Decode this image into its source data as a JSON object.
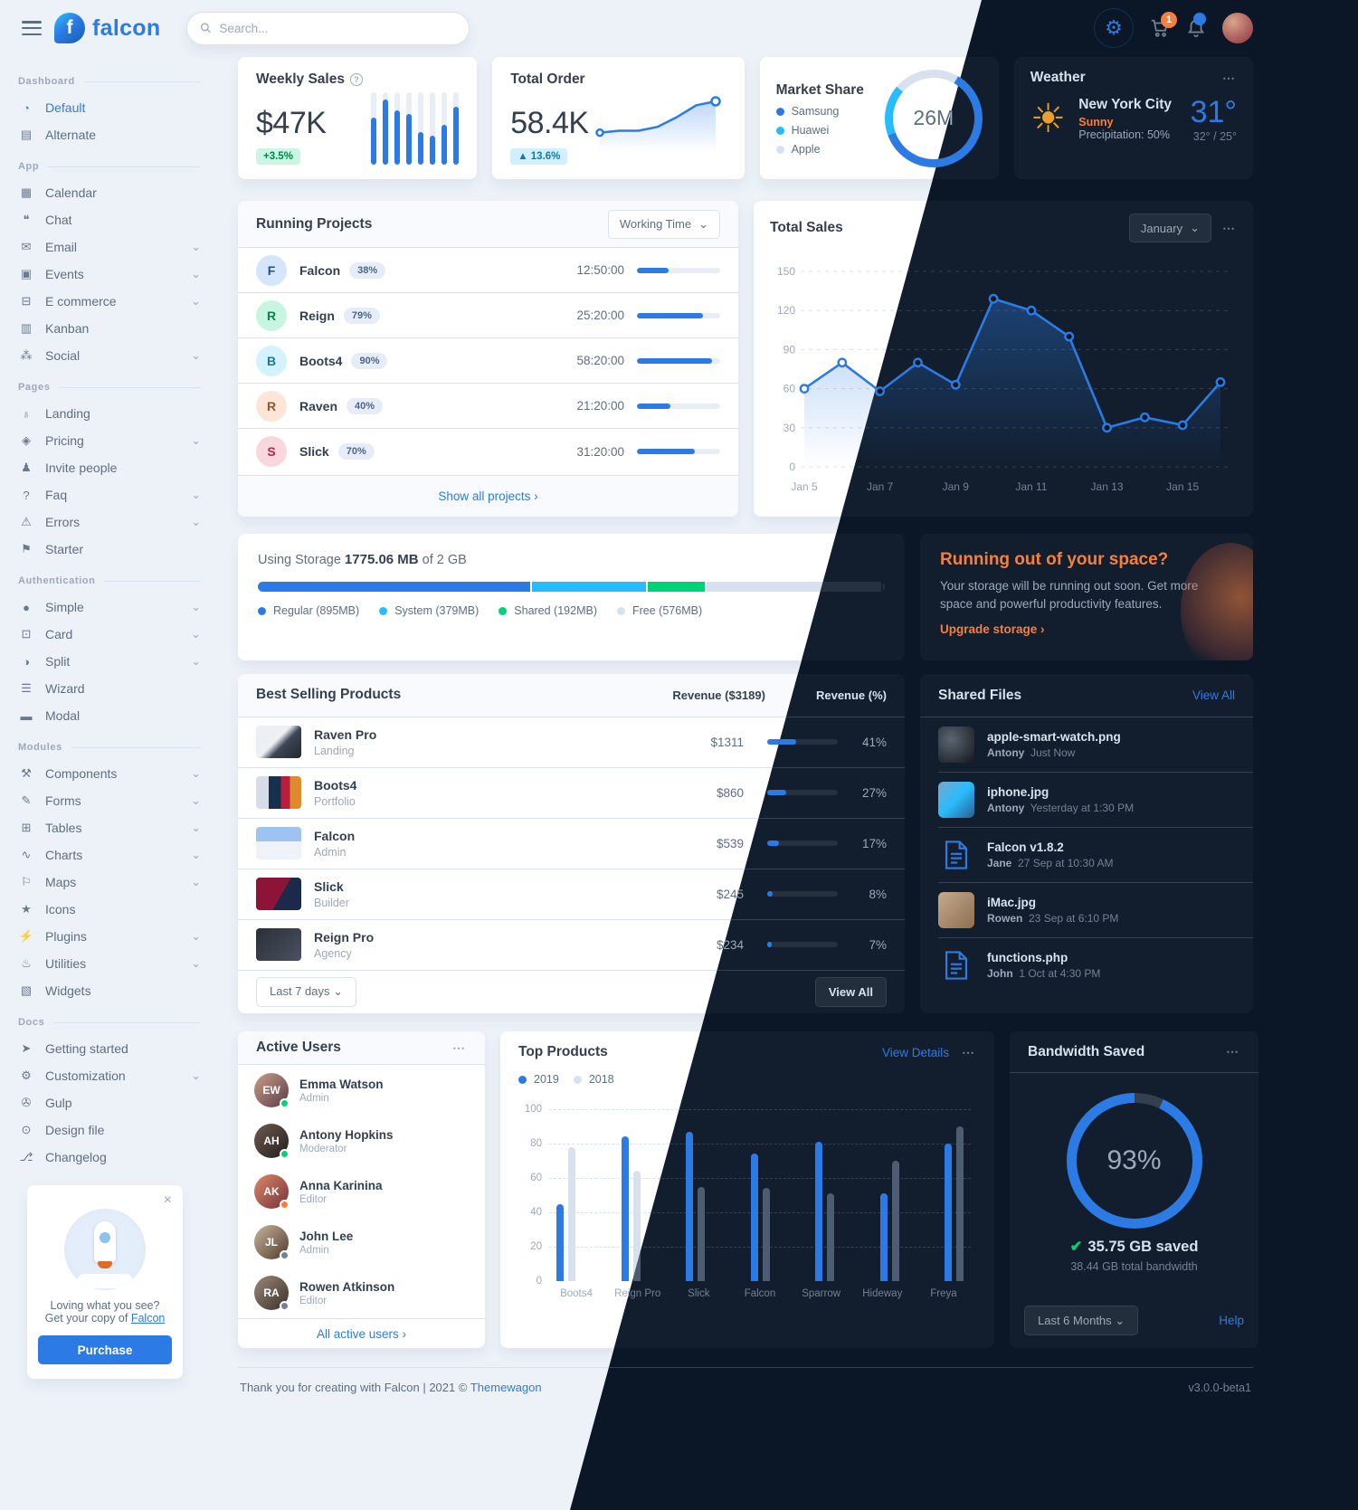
{
  "app": {
    "logo_text": "falcon",
    "search_placeholder": "Search...",
    "cart_badge": "1",
    "footer": {
      "thanks": "Thank you for creating with Falcon |",
      "year": "2021 ©",
      "brand": "Themewagon",
      "version": "v3.0.0-beta1"
    }
  },
  "sidebar": {
    "groups": [
      {
        "label": "Dashboard",
        "items": [
          {
            "label": "Default",
            "icon": "◔",
            "icon_name": "pie-chart-icon",
            "active": true
          },
          {
            "label": "Alternate",
            "icon": "▤",
            "icon_name": "bar-chart-icon"
          }
        ]
      },
      {
        "label": "App",
        "items": [
          {
            "label": "Calendar",
            "icon": "▦",
            "icon_name": "calendar-icon"
          },
          {
            "label": "Chat",
            "icon": "❝",
            "icon_name": "chat-icon"
          },
          {
            "label": "Email",
            "icon": "✉",
            "icon_name": "email-icon",
            "caret": true
          },
          {
            "label": "Events",
            "icon": "▣",
            "icon_name": "events-icon",
            "caret": true
          },
          {
            "label": "E commerce",
            "icon": "⊟",
            "icon_name": "cart-icon",
            "caret": true
          },
          {
            "label": "Kanban",
            "icon": "▥",
            "icon_name": "kanban-icon"
          },
          {
            "label": "Social",
            "icon": "⁂",
            "icon_name": "share-icon",
            "caret": true
          }
        ]
      },
      {
        "label": "Pages",
        "items": [
          {
            "label": "Landing",
            "icon": "♁",
            "icon_name": "globe-icon"
          },
          {
            "label": "Pricing",
            "icon": "◈",
            "icon_name": "tags-icon",
            "caret": true
          },
          {
            "label": "Invite people",
            "icon": "♟",
            "icon_name": "user-plus-icon"
          },
          {
            "label": "Faq",
            "icon": "?",
            "icon_name": "question-icon",
            "caret": true
          },
          {
            "label": "Errors",
            "icon": "⚠",
            "icon_name": "warning-icon",
            "caret": true
          },
          {
            "label": "Starter",
            "icon": "⚑",
            "icon_name": "flag-icon"
          }
        ]
      },
      {
        "label": "Authentication",
        "items": [
          {
            "label": "Simple",
            "icon": "●",
            "icon_name": "circle-icon",
            "caret": true
          },
          {
            "label": "Card",
            "icon": "⊡",
            "icon_name": "card-icon",
            "caret": true
          },
          {
            "label": "Split",
            "icon": "◑",
            "icon_name": "half-circle-icon",
            "caret": true
          },
          {
            "label": "Wizard",
            "icon": "☰",
            "icon_name": "layers-icon"
          },
          {
            "label": "Modal",
            "icon": "▬",
            "icon_name": "window-icon"
          }
        ]
      },
      {
        "label": "Modules",
        "items": [
          {
            "label": "Components",
            "icon": "⚒",
            "icon_name": "puzzle-icon",
            "caret": true
          },
          {
            "label": "Forms",
            "icon": "✎",
            "icon_name": "form-icon",
            "caret": true
          },
          {
            "label": "Tables",
            "icon": "⊞",
            "icon_name": "table-icon",
            "caret": true
          },
          {
            "label": "Charts",
            "icon": "∿",
            "icon_name": "line-chart-icon",
            "caret": true
          },
          {
            "label": "Maps",
            "icon": "⚐",
            "icon_name": "map-icon",
            "caret": true
          },
          {
            "label": "Icons",
            "icon": "★",
            "icon_name": "star-icon"
          },
          {
            "label": "Plugins",
            "icon": "⚡",
            "icon_name": "plug-icon",
            "caret": true
          },
          {
            "label": "Utilities",
            "icon": "♨",
            "icon_name": "fire-icon",
            "caret": true
          },
          {
            "label": "Widgets",
            "icon": "▧",
            "icon_name": "widgets-icon"
          }
        ]
      },
      {
        "label": "Docs",
        "items": [
          {
            "label": "Getting started",
            "icon": "➤",
            "icon_name": "rocket-icon"
          },
          {
            "label": "Customization",
            "icon": "⚙",
            "icon_name": "wrench-icon",
            "caret": true
          },
          {
            "label": "Gulp",
            "icon": "✇",
            "icon_name": "gulp-icon"
          },
          {
            "label": "Design file",
            "icon": "⊙",
            "icon_name": "palette-icon"
          },
          {
            "label": "Changelog",
            "icon": "⎇",
            "icon_name": "code-branch-icon"
          }
        ]
      }
    ],
    "promo": {
      "line1": "Loving what you see?",
      "line2": "Get your copy of",
      "brand": "Falcon",
      "button": "Purchase",
      "close": "×"
    }
  },
  "weekly_sales": {
    "title": "Weekly Sales",
    "value": "$47K",
    "badge": "+3.5%"
  },
  "total_order": {
    "title": "Total Order",
    "value": "58.4K",
    "badge": "▲ 13.6%"
  },
  "market_share": {
    "title": "Market Share",
    "center": "26M",
    "legend": [
      {
        "label": "Samsung",
        "color": "#2c7be5"
      },
      {
        "label": "Huawei",
        "color": "#27bcfd"
      },
      {
        "label": "Apple",
        "color": "#d8e2ef"
      }
    ]
  },
  "weather": {
    "title": "Weather",
    "city": "New York City",
    "condition": "Sunny",
    "precipitation": "Precipitation: 50%",
    "temp": "31°",
    "range": "32° / 25°"
  },
  "running_projects": {
    "title": "Running Projects",
    "filter": "Working Time",
    "show_all": "Show all projects ›",
    "rows": [
      {
        "initial": "F",
        "name": "Falcon",
        "pct": 38,
        "time": "12:50:00",
        "color": "blue"
      },
      {
        "initial": "R",
        "name": "Reign",
        "pct": 79,
        "time": "25:20:00",
        "color": "green"
      },
      {
        "initial": "B",
        "name": "Boots4",
        "pct": 90,
        "time": "58:20:00",
        "color": "cyan"
      },
      {
        "initial": "R",
        "name": "Raven",
        "pct": 40,
        "time": "21:20:00",
        "color": "orange"
      },
      {
        "initial": "S",
        "name": "Slick",
        "pct": 70,
        "time": "31:20:00",
        "color": "red"
      }
    ]
  },
  "total_sales": {
    "title": "Total Sales",
    "month": "January"
  },
  "storage": {
    "prefix": "Using Storage",
    "used": "1775.06 MB",
    "of_text": "of 2 GB",
    "total_mb": 2048,
    "segments": [
      {
        "label": "Regular (895MB)",
        "mb": 895,
        "color": "#2c7be5"
      },
      {
        "label": "System (379MB)",
        "mb": 379,
        "color": "#27bcfd"
      },
      {
        "label": "Shared (192MB)",
        "mb": 192,
        "color": "#00d27a"
      },
      {
        "label": "Free (576MB)",
        "mb": 576,
        "color": "#d8e2ef"
      }
    ]
  },
  "upgrade": {
    "title": "Running out of your space?",
    "body": "Your storage will be running out soon. Get more space and powerful productivity features.",
    "cta": "Upgrade storage ›"
  },
  "best_selling": {
    "title": "Best Selling Products",
    "col_revenue": "Revenue ($3189)",
    "col_pct": "Revenue (%)",
    "period": "Last 7 days ⌄",
    "view_all": "View All",
    "rows": [
      {
        "name": "Raven Pro",
        "category": "Landing",
        "revenue": "$1311",
        "pct": 41
      },
      {
        "name": "Boots4",
        "category": "Portfolio",
        "revenue": "$860",
        "pct": 27
      },
      {
        "name": "Falcon",
        "category": "Admin",
        "revenue": "$539",
        "pct": 17
      },
      {
        "name": "Slick",
        "category": "Builder",
        "revenue": "$245",
        "pct": 8
      },
      {
        "name": "Reign Pro",
        "category": "Agency",
        "revenue": "$234",
        "pct": 7
      }
    ]
  },
  "shared_files": {
    "title": "Shared Files",
    "view_all": "View All",
    "files": [
      {
        "name": "apple-smart-watch.png",
        "who": "Antony",
        "when": "Just Now",
        "thumb": "gw"
      },
      {
        "name": "iphone.jpg",
        "who": "Antony",
        "when": "Yesterday at 1:30 PM",
        "thumb": "gi"
      },
      {
        "name": "Falcon v1.8.2",
        "who": "Jane",
        "when": "27 Sep at 10:30 AM",
        "thumb": "zip"
      },
      {
        "name": "iMac.jpg",
        "who": "Rowen",
        "when": "23 Sep at 6:10 PM",
        "thumb": "gm"
      },
      {
        "name": "functions.php",
        "who": "John",
        "when": "1 Oct at 4:30 PM",
        "thumb": "doc"
      }
    ]
  },
  "active_users": {
    "title": "Active Users",
    "link": "All active users ›",
    "users": [
      {
        "name": "Emma Watson",
        "role": "Admin",
        "status": "#00d27a",
        "initials": "EW",
        "av": "ua1"
      },
      {
        "name": "Antony Hopkins",
        "role": "Moderator",
        "status": "#00d27a",
        "initials": "AH",
        "av": "ua2"
      },
      {
        "name": "Anna Karinina",
        "role": "Editor",
        "status": "#f5803e",
        "initials": "AK",
        "av": "ua3"
      },
      {
        "name": "John Lee",
        "role": "Admin",
        "status": "#748194",
        "initials": "JL",
        "av": "ua4"
      },
      {
        "name": "Rowen Atkinson",
        "role": "Editor",
        "status": "#748194",
        "initials": "RA",
        "av": "ua5"
      }
    ]
  },
  "top_products": {
    "title": "Top Products",
    "link": "View Details"
  },
  "bandwidth": {
    "title": "Bandwidth Saved",
    "pct": "93%",
    "saved": "35.75 GB saved",
    "total": "38.44 GB total bandwidth",
    "period": "Last 6 Months ⌄",
    "help": "Help"
  },
  "chart_data": [
    {
      "id": "weekly_sales_bars",
      "type": "bar",
      "title": "Weekly Sales",
      "values": [
        65,
        90,
        75,
        70,
        45,
        40,
        55,
        80
      ],
      "ylim": [
        0,
        100
      ],
      "grid": false
    },
    {
      "id": "total_order_spark",
      "type": "line",
      "title": "Total Order",
      "values": [
        8,
        9,
        9,
        11,
        16,
        22,
        24
      ],
      "grid": false
    },
    {
      "id": "market_share_donut",
      "type": "pie",
      "title": "Market Share",
      "center_label": "26M",
      "labels": [
        "Samsung",
        "Huawei",
        "Apple"
      ],
      "values": [
        61,
        17,
        22
      ],
      "colors": [
        "#2c7be5",
        "#27bcfd",
        "#d8e2ef"
      ],
      "legend_position": "left"
    },
    {
      "id": "total_sales_line",
      "type": "line",
      "title": "Total Sales",
      "x_ticks": [
        "Jan 5",
        "Jan 7",
        "Jan 9",
        "Jan 11",
        "Jan 13",
        "Jan 15"
      ],
      "values": [
        60,
        80,
        58,
        80,
        63,
        129,
        120,
        100,
        30,
        38,
        32,
        65
      ],
      "ylim": [
        0,
        150
      ],
      "yticks": [
        0,
        30,
        60,
        90,
        120,
        150
      ],
      "grid": true
    },
    {
      "id": "top_products_bars",
      "type": "bar",
      "title": "Top Products",
      "categories": [
        "Boots4",
        "Reign Pro",
        "Slick",
        "Falcon",
        "Sparrow",
        "Hideway",
        "Freya"
      ],
      "series": [
        {
          "name": "2019",
          "color": "#2c7be5",
          "values": [
            45,
            84,
            87,
            74,
            81,
            51,
            80
          ]
        },
        {
          "name": "2018",
          "color": "#d8e2ef",
          "values": [
            78,
            64,
            55,
            54,
            51,
            70,
            90
          ]
        }
      ],
      "ylim": [
        0,
        100
      ],
      "yticks": [
        0,
        20,
        40,
        60,
        80,
        100
      ],
      "grid": true,
      "legend_position": "top-left"
    },
    {
      "id": "bandwidth_gauge",
      "type": "pie",
      "title": "Bandwidth Saved",
      "value": 93,
      "center_label": "93%"
    }
  ]
}
